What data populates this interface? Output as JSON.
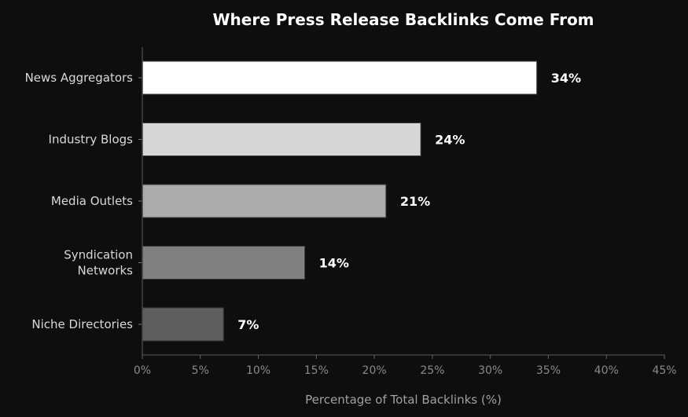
{
  "chart_data": {
    "type": "bar",
    "orientation": "horizontal",
    "title": "Where Press Release Backlinks Come From",
    "xlabel": "Percentage of Total Backlinks (%)",
    "ylabel": "",
    "xlim": [
      0,
      45
    ],
    "xticks": [
      0,
      5,
      10,
      15,
      20,
      25,
      30,
      35,
      40,
      45
    ],
    "xtick_labels": [
      "0%",
      "5%",
      "10%",
      "15%",
      "20%",
      "25%",
      "30%",
      "35%",
      "40%",
      "45%"
    ],
    "grid": false,
    "categories": [
      [
        "News Aggregators"
      ],
      [
        "Industry Blogs"
      ],
      [
        "Media Outlets"
      ],
      [
        "Syndication",
        "Networks"
      ],
      [
        "Niche Directories"
      ]
    ],
    "values": [
      34,
      24,
      21,
      14,
      7
    ],
    "data_labels": [
      "34%",
      "24%",
      "21%",
      "14%",
      "7%"
    ],
    "bar_colors": [
      "#ffffff",
      "#d6d6d6",
      "#ababab",
      "#808080",
      "#5e5e5e"
    ],
    "background_color": "#0e0e0e"
  }
}
